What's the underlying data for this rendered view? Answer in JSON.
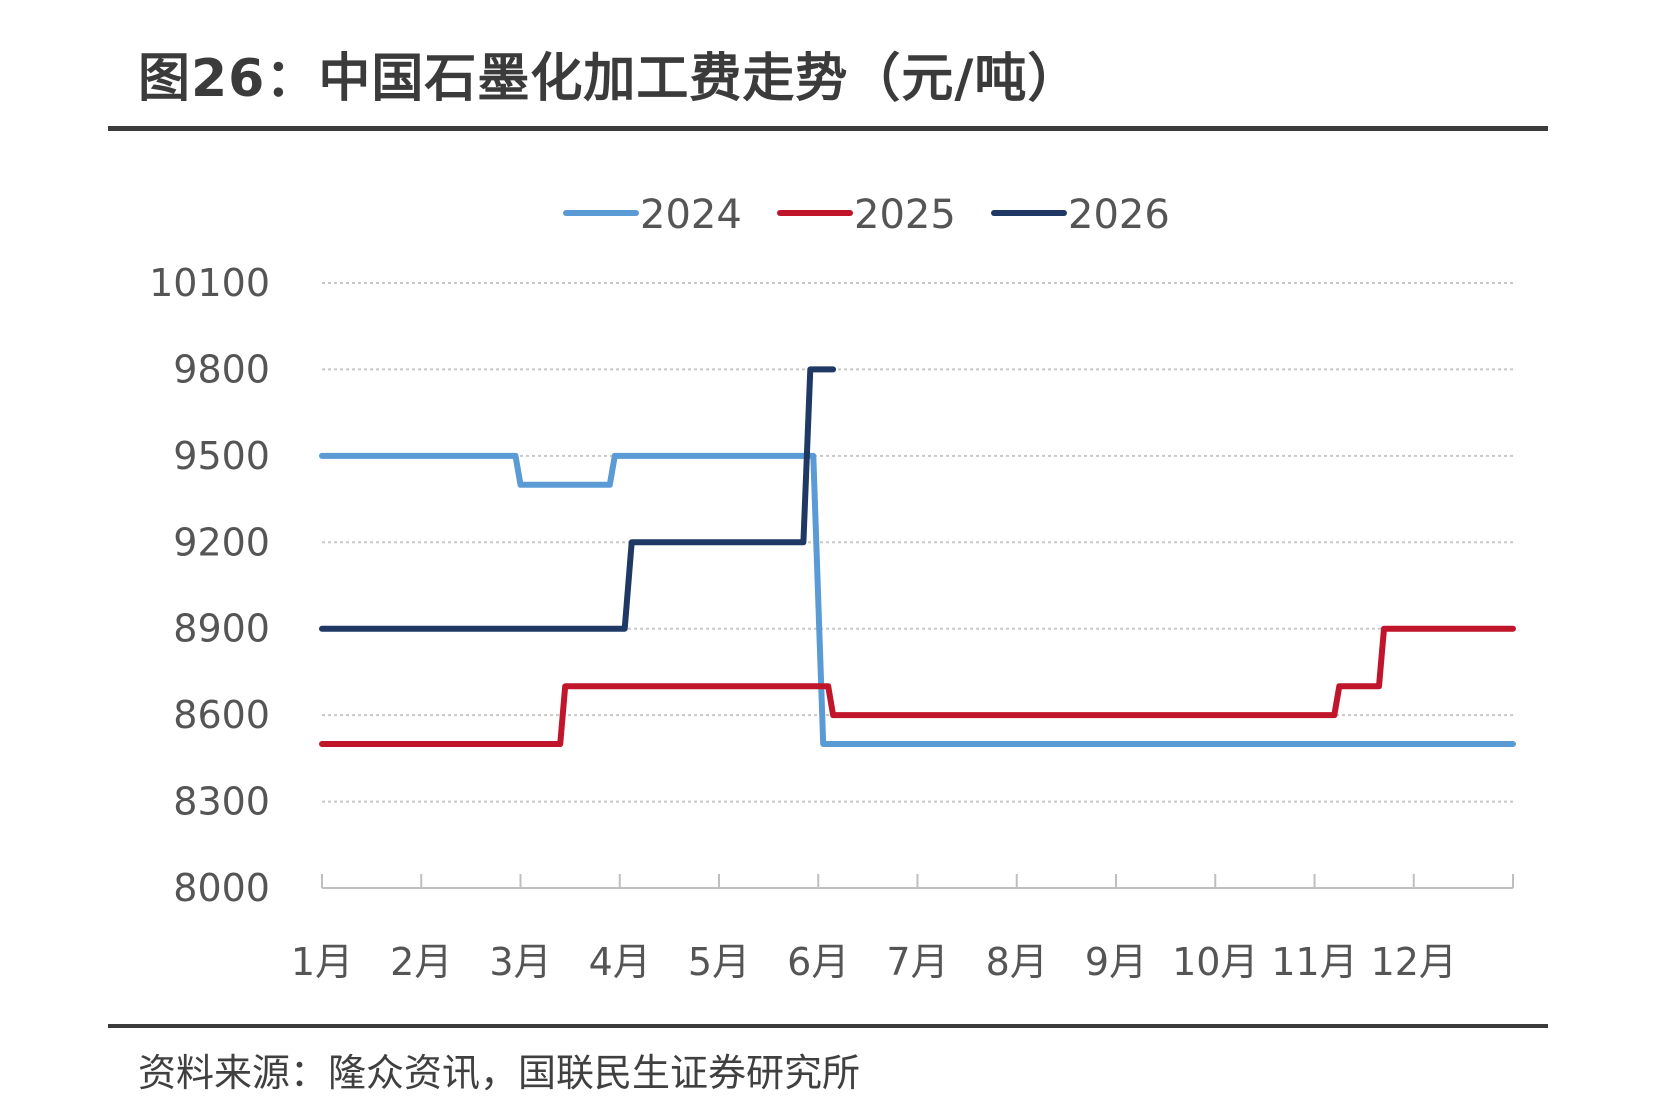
{
  "title": "图26：中国石墨化加工费走势（元/吨）",
  "source": "资料来源：隆众资讯，国联民生证券研究所",
  "chart_data": {
    "type": "line",
    "categories": [
      "1月",
      "2月",
      "3月",
      "4月",
      "5月",
      "6月",
      "7月",
      "8月",
      "9月",
      "10月",
      "11月",
      "12月"
    ],
    "ylim": [
      8000,
      10100
    ],
    "yticks": [
      8000,
      8300,
      8600,
      8900,
      9200,
      9500,
      9800,
      10100
    ],
    "grid": true,
    "legend_position": "top",
    "series": [
      {
        "name": "2024",
        "color": "#5b9bd5",
        "points": [
          [
            1,
            9500
          ],
          [
            2.95,
            9500
          ],
          [
            3.0,
            9400
          ],
          [
            3.9,
            9400
          ],
          [
            3.95,
            9500
          ],
          [
            5.95,
            9500
          ],
          [
            6.05,
            8500
          ],
          [
            13,
            8500
          ]
        ]
      },
      {
        "name": "2025",
        "color": "#c0152a",
        "points": [
          [
            1,
            8500
          ],
          [
            3.4,
            8500
          ],
          [
            3.45,
            8700
          ],
          [
            6.1,
            8700
          ],
          [
            6.15,
            8600
          ],
          [
            11.2,
            8600
          ],
          [
            11.25,
            8700
          ],
          [
            11.65,
            8700
          ],
          [
            11.7,
            8900
          ],
          [
            13,
            8900
          ]
        ]
      },
      {
        "name": "2026",
        "color": "#1f3864",
        "points": [
          [
            1,
            8900
          ],
          [
            4.05,
            8900
          ],
          [
            4.12,
            9200
          ],
          [
            5.85,
            9200
          ],
          [
            5.92,
            9800
          ],
          [
            6.15,
            9800
          ]
        ]
      }
    ]
  }
}
